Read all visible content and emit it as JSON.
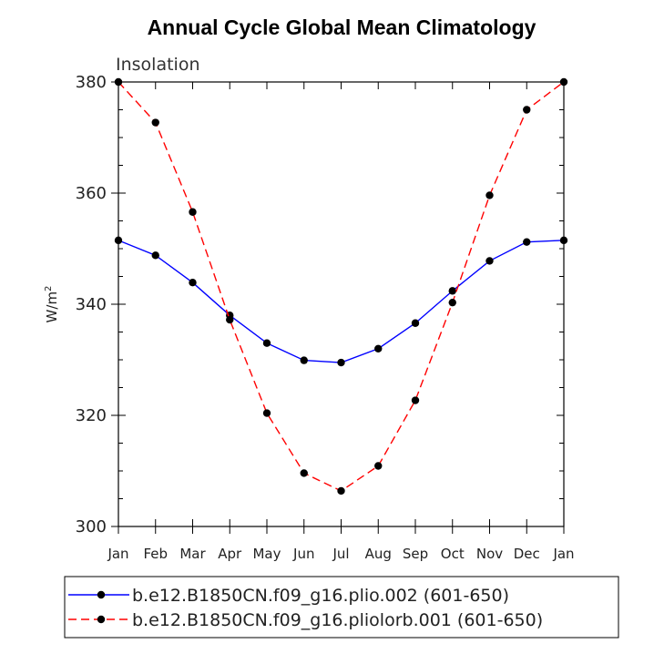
{
  "chart_data": {
    "type": "line",
    "title": "Annual Cycle Global Mean Climatology",
    "subtitle": "Insolation",
    "ylabel_base": "W/m",
    "ylabel_exp": "2",
    "xlabel": "",
    "categories": [
      "Jan",
      "Feb",
      "Mar",
      "Apr",
      "May",
      "Jun",
      "Jul",
      "Aug",
      "Sep",
      "Oct",
      "Nov",
      "Dec",
      "Jan"
    ],
    "ylim": [
      300,
      380
    ],
    "yticks": [
      300,
      320,
      340,
      360,
      380
    ],
    "series": [
      {
        "name": "b.e12.B1850CN.f09_g16.plio.002 (601-650)",
        "color": "#0000ff",
        "dash": "solid",
        "values": [
          351.5,
          348.8,
          343.9,
          338.0,
          333.0,
          329.9,
          329.5,
          332.0,
          336.6,
          342.4,
          347.8,
          351.2,
          351.5
        ]
      },
      {
        "name": "b.e12.B1850CN.f09_g16.pliolorb.001 (601-650)",
        "color": "#ff0000",
        "dash": "dashed",
        "values": [
          380.0,
          372.7,
          356.6,
          337.2,
          320.4,
          309.6,
          306.4,
          310.9,
          322.7,
          340.3,
          359.6,
          375.0,
          380.0
        ]
      }
    ],
    "legend_position": "bottom"
  }
}
